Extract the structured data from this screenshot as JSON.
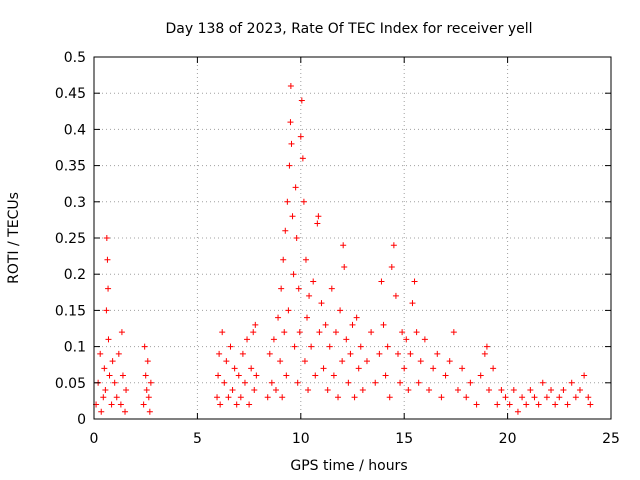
{
  "chart_data": {
    "type": "scatter",
    "title": "Day 138 of 2023, Rate Of TEC Index for receiver yell",
    "xlabel": "GPS time / hours",
    "ylabel": "ROTI / TECUs",
    "xlim": [
      0,
      25
    ],
    "ylim": [
      0,
      0.5
    ],
    "xticks": [
      0,
      5,
      10,
      15,
      20,
      25
    ],
    "yticks": [
      0,
      0.05,
      0.1,
      0.15,
      0.2,
      0.25,
      0.3,
      0.35,
      0.4,
      0.45,
      0.5
    ],
    "grid": true,
    "marker": "+",
    "color": "#ff0000",
    "series": [
      {
        "name": "ROTI",
        "points": [
          [
            0.1,
            0.02
          ],
          [
            0.2,
            0.05
          ],
          [
            0.3,
            0.09
          ],
          [
            0.35,
            0.01
          ],
          [
            0.45,
            0.03
          ],
          [
            0.5,
            0.07
          ],
          [
            0.55,
            0.04
          ],
          [
            0.6,
            0.15
          ],
          [
            0.62,
            0.25
          ],
          [
            0.65,
            0.22
          ],
          [
            0.68,
            0.18
          ],
          [
            0.7,
            0.11
          ],
          [
            0.75,
            0.06
          ],
          [
            0.85,
            0.02
          ],
          [
            0.9,
            0.08
          ],
          [
            1.0,
            0.05
          ],
          [
            1.1,
            0.03
          ],
          [
            1.2,
            0.09
          ],
          [
            1.3,
            0.02
          ],
          [
            1.35,
            0.12
          ],
          [
            1.4,
            0.06
          ],
          [
            1.5,
            0.01
          ],
          [
            1.55,
            0.04
          ],
          [
            2.4,
            0.02
          ],
          [
            2.45,
            0.1
          ],
          [
            2.5,
            0.06
          ],
          [
            2.55,
            0.04
          ],
          [
            2.6,
            0.08
          ],
          [
            2.65,
            0.03
          ],
          [
            2.7,
            0.01
          ],
          [
            2.75,
            0.05
          ],
          [
            5.95,
            0.03
          ],
          [
            6.0,
            0.06
          ],
          [
            6.05,
            0.09
          ],
          [
            6.1,
            0.02
          ],
          [
            6.2,
            0.12
          ],
          [
            6.3,
            0.05
          ],
          [
            6.4,
            0.08
          ],
          [
            6.5,
            0.03
          ],
          [
            6.6,
            0.1
          ],
          [
            6.7,
            0.04
          ],
          [
            6.8,
            0.07
          ],
          [
            6.9,
            0.02
          ],
          [
            7.0,
            0.06
          ],
          [
            7.1,
            0.03
          ],
          [
            7.2,
            0.09
          ],
          [
            7.3,
            0.05
          ],
          [
            7.4,
            0.11
          ],
          [
            7.5,
            0.02
          ],
          [
            7.6,
            0.07
          ],
          [
            7.7,
            0.12
          ],
          [
            7.75,
            0.04
          ],
          [
            7.8,
            0.13
          ],
          [
            7.85,
            0.06
          ],
          [
            8.4,
            0.03
          ],
          [
            8.5,
            0.09
          ],
          [
            8.6,
            0.05
          ],
          [
            8.7,
            0.11
          ],
          [
            8.8,
            0.04
          ],
          [
            8.9,
            0.14
          ],
          [
            9.0,
            0.08
          ],
          [
            9.05,
            0.18
          ],
          [
            9.1,
            0.03
          ],
          [
            9.15,
            0.22
          ],
          [
            9.2,
            0.12
          ],
          [
            9.25,
            0.26
          ],
          [
            9.3,
            0.06
          ],
          [
            9.35,
            0.3
          ],
          [
            9.4,
            0.15
          ],
          [
            9.45,
            0.35
          ],
          [
            9.5,
            0.41
          ],
          [
            9.52,
            0.46
          ],
          [
            9.55,
            0.38
          ],
          [
            9.6,
            0.28
          ],
          [
            9.65,
            0.2
          ],
          [
            9.7,
            0.1
          ],
          [
            9.75,
            0.32
          ],
          [
            9.8,
            0.25
          ],
          [
            9.85,
            0.05
          ],
          [
            9.9,
            0.18
          ],
          [
            9.95,
            0.12
          ],
          [
            10.0,
            0.39
          ],
          [
            10.05,
            0.44
          ],
          [
            10.1,
            0.36
          ],
          [
            10.15,
            0.3
          ],
          [
            10.2,
            0.08
          ],
          [
            10.25,
            0.22
          ],
          [
            10.3,
            0.14
          ],
          [
            10.35,
            0.04
          ],
          [
            10.4,
            0.17
          ],
          [
            10.5,
            0.1
          ],
          [
            10.6,
            0.19
          ],
          [
            10.7,
            0.06
          ],
          [
            10.8,
            0.27
          ],
          [
            10.85,
            0.28
          ],
          [
            10.9,
            0.12
          ],
          [
            11.0,
            0.16
          ],
          [
            11.1,
            0.07
          ],
          [
            11.2,
            0.13
          ],
          [
            11.3,
            0.04
          ],
          [
            11.4,
            0.1
          ],
          [
            11.5,
            0.18
          ],
          [
            11.6,
            0.06
          ],
          [
            11.7,
            0.12
          ],
          [
            11.8,
            0.03
          ],
          [
            11.9,
            0.15
          ],
          [
            12.0,
            0.08
          ],
          [
            12.05,
            0.24
          ],
          [
            12.1,
            0.21
          ],
          [
            12.2,
            0.11
          ],
          [
            12.3,
            0.05
          ],
          [
            12.4,
            0.09
          ],
          [
            12.5,
            0.13
          ],
          [
            12.6,
            0.03
          ],
          [
            12.7,
            0.14
          ],
          [
            12.8,
            0.07
          ],
          [
            12.9,
            0.1
          ],
          [
            13.0,
            0.04
          ],
          [
            13.2,
            0.08
          ],
          [
            13.4,
            0.12
          ],
          [
            13.6,
            0.05
          ],
          [
            13.8,
            0.09
          ],
          [
            13.9,
            0.19
          ],
          [
            14.0,
            0.13
          ],
          [
            14.1,
            0.06
          ],
          [
            14.2,
            0.1
          ],
          [
            14.3,
            0.03
          ],
          [
            14.4,
            0.21
          ],
          [
            14.5,
            0.24
          ],
          [
            14.6,
            0.17
          ],
          [
            14.7,
            0.09
          ],
          [
            14.8,
            0.05
          ],
          [
            14.9,
            0.12
          ],
          [
            15.0,
            0.07
          ],
          [
            15.1,
            0.11
          ],
          [
            15.2,
            0.04
          ],
          [
            15.3,
            0.09
          ],
          [
            15.4,
            0.16
          ],
          [
            15.5,
            0.19
          ],
          [
            15.6,
            0.12
          ],
          [
            15.7,
            0.05
          ],
          [
            15.8,
            0.08
          ],
          [
            16.0,
            0.11
          ],
          [
            16.2,
            0.04
          ],
          [
            16.4,
            0.07
          ],
          [
            16.6,
            0.09
          ],
          [
            16.8,
            0.03
          ],
          [
            17.0,
            0.06
          ],
          [
            17.2,
            0.08
          ],
          [
            17.4,
            0.12
          ],
          [
            17.6,
            0.04
          ],
          [
            17.8,
            0.07
          ],
          [
            18.0,
            0.03
          ],
          [
            18.2,
            0.05
          ],
          [
            18.5,
            0.02
          ],
          [
            18.7,
            0.06
          ],
          [
            18.9,
            0.09
          ],
          [
            19.0,
            0.1
          ],
          [
            19.1,
            0.04
          ],
          [
            19.3,
            0.07
          ],
          [
            19.5,
            0.02
          ],
          [
            19.7,
            0.04
          ],
          [
            19.9,
            0.03
          ],
          [
            20.1,
            0.02
          ],
          [
            20.3,
            0.04
          ],
          [
            20.5,
            0.01
          ],
          [
            20.7,
            0.03
          ],
          [
            20.9,
            0.02
          ],
          [
            21.1,
            0.04
          ],
          [
            21.3,
            0.03
          ],
          [
            21.5,
            0.02
          ],
          [
            21.7,
            0.05
          ],
          [
            21.9,
            0.03
          ],
          [
            22.1,
            0.04
          ],
          [
            22.3,
            0.02
          ],
          [
            22.5,
            0.03
          ],
          [
            22.7,
            0.04
          ],
          [
            22.9,
            0.02
          ],
          [
            23.1,
            0.05
          ],
          [
            23.3,
            0.03
          ],
          [
            23.5,
            0.04
          ],
          [
            23.7,
            0.06
          ],
          [
            23.9,
            0.03
          ],
          [
            24.0,
            0.02
          ]
        ]
      }
    ]
  }
}
